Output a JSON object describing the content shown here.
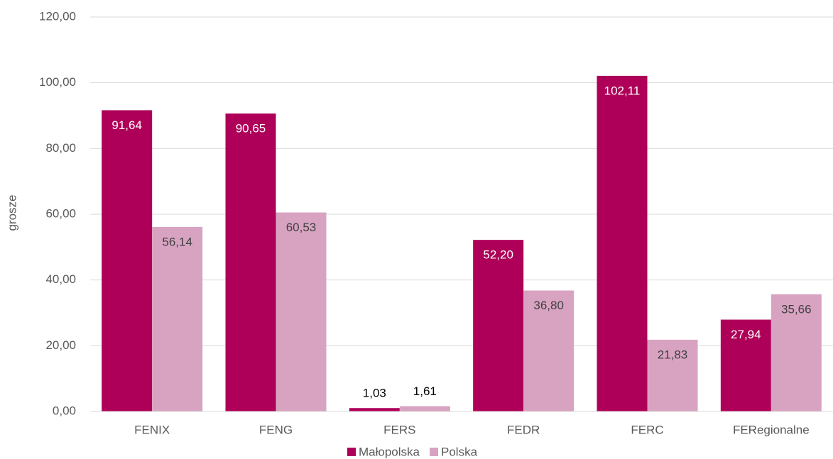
{
  "chart_data": {
    "type": "bar",
    "y_label": "grosze",
    "categories": [
      "FENIX",
      "FENG",
      "FERS",
      "FEDR",
      "FERC",
      "FERegionalne"
    ],
    "series": [
      {
        "name": "Małopolska",
        "color": "#ae0058",
        "values": [
          91.64,
          90.65,
          1.03,
          52.2,
          102.11,
          27.94
        ],
        "value_labels": [
          "91,64",
          "90,65",
          "1,03",
          "52,20",
          "102,11",
          "27,94"
        ]
      },
      {
        "name": "Polska",
        "color": "#d8a3c1",
        "values": [
          56.14,
          60.53,
          1.61,
          36.8,
          21.83,
          35.66
        ],
        "value_labels": [
          "56,14",
          "60,53",
          "1,61",
          "36,80",
          "21,83",
          "35,66"
        ]
      }
    ],
    "ylim": [
      0,
      120
    ],
    "yticks": [
      {
        "value": 0,
        "label": "0,00"
      },
      {
        "value": 20,
        "label": "20,00"
      },
      {
        "value": 40,
        "label": "40,00"
      },
      {
        "value": 60,
        "label": "60,00"
      },
      {
        "value": 80,
        "label": "80,00"
      },
      {
        "value": 100,
        "label": "100,00"
      },
      {
        "value": 120,
        "label": "120,00"
      }
    ],
    "grid": true,
    "legend": "bottom"
  }
}
